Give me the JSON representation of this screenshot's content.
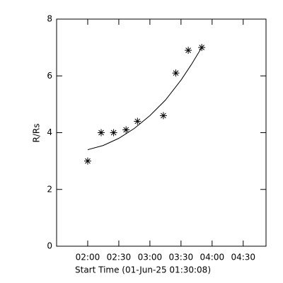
{
  "chart_data": {
    "type": "scatter",
    "x_label": "Start Time (01-Jun-25 01:30:08)",
    "y_label": "R/Rs",
    "series": [
      {
        "color": "#000000",
        "marker": "asterisk",
        "x": [
          120,
          133,
          145,
          157,
          168,
          193,
          205,
          217,
          230
        ],
        "values": [
          3.0,
          4.0,
          4.0,
          4.1,
          4.4,
          4.6,
          6.1,
          6.9,
          7.0
        ]
      },
      {
        "color": "#000000",
        "marker": "line",
        "x": [
          120,
          135,
          150,
          165,
          180,
          195,
          210,
          220,
          230
        ],
        "values": [
          3.4,
          3.55,
          3.8,
          4.15,
          4.6,
          5.15,
          5.85,
          6.4,
          7.0
        ]
      }
    ],
    "xlim": [
      90,
      292
    ],
    "xticks": [
      {
        "value": 120,
        "label": "02:00"
      },
      {
        "value": 150,
        "label": "02:30"
      },
      {
        "value": 180,
        "label": "03:00"
      },
      {
        "value": 210,
        "label": "03:30"
      },
      {
        "value": 240,
        "label": "04:00"
      },
      {
        "value": 270,
        "label": "04:30"
      }
    ],
    "ylim": [
      0,
      8
    ],
    "yticks": [
      0,
      2,
      4,
      6,
      8
    ]
  }
}
